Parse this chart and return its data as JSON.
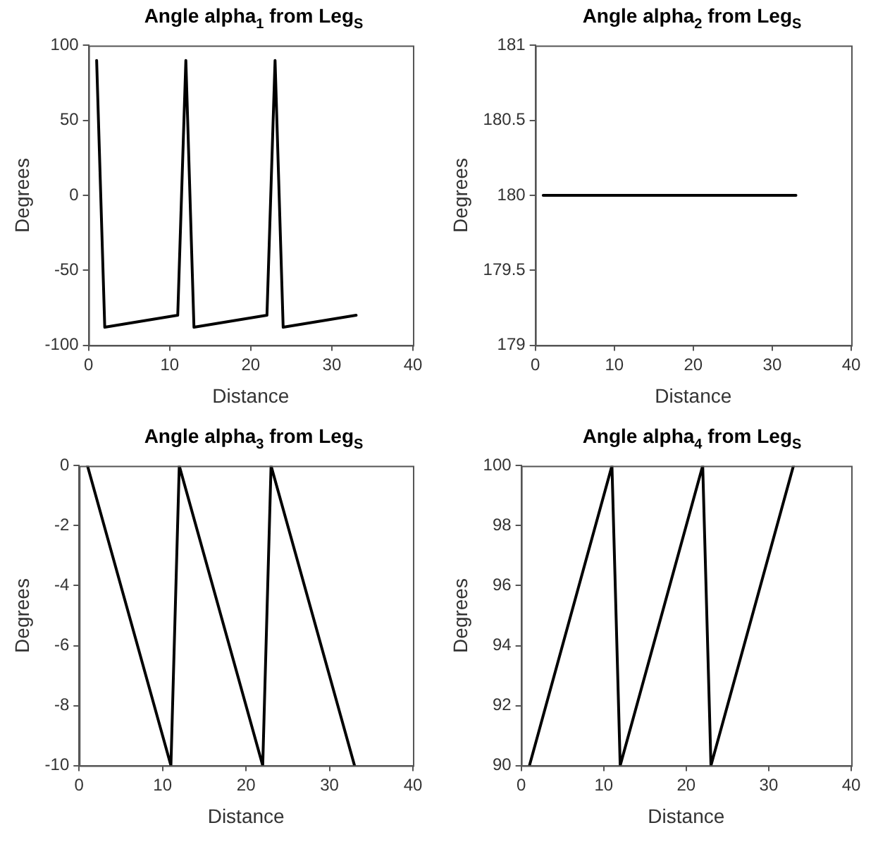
{
  "chart_data": [
    {
      "type": "line",
      "title": "Angle alpha$_{1}$ from Leg$_{S}$",
      "xlabel": "Distance",
      "ylabel": "Degrees",
      "x": [
        1,
        2,
        11,
        12,
        13,
        22,
        23,
        24,
        33
      ],
      "values": [
        90,
        -88,
        -80,
        90,
        -88,
        -80,
        90,
        -88,
        -80
      ],
      "color": "#000000",
      "xlim": [
        0,
        40
      ],
      "xticks": [
        0,
        10,
        20,
        30,
        40
      ],
      "ylim": [
        -100,
        100
      ],
      "yticks": [
        -100,
        -50,
        0,
        50,
        100
      ],
      "grid": false,
      "legend": false,
      "marker": "none",
      "line_style": "solid"
    },
    {
      "type": "line",
      "title": "Angle alpha$_{2}$ from Leg$_{S}$",
      "xlabel": "Distance",
      "ylabel": "Degrees",
      "x": [
        1,
        33
      ],
      "values": [
        180,
        180
      ],
      "color": "#000000",
      "xlim": [
        0,
        40
      ],
      "xticks": [
        0,
        10,
        20,
        30,
        40
      ],
      "ylim": [
        179,
        181
      ],
      "yticks": [
        179,
        179.5,
        180,
        180.5,
        181
      ],
      "grid": false,
      "legend": false,
      "marker": "none",
      "line_style": "solid"
    },
    {
      "type": "line",
      "title": "Angle alpha$_{3}$ from Leg$_{S}$",
      "xlabel": "Distance",
      "ylabel": "Degrees",
      "x": [
        1,
        11,
        12,
        22,
        23,
        33
      ],
      "values": [
        0,
        -10,
        0,
        -10,
        0,
        -10
      ],
      "color": "#000000",
      "xlim": [
        0,
        40
      ],
      "xticks": [
        0,
        10,
        20,
        30,
        40
      ],
      "ylim": [
        -10,
        0
      ],
      "yticks": [
        -10,
        -8,
        -6,
        -4,
        -2,
        0
      ],
      "grid": false,
      "legend": false,
      "marker": "none",
      "line_style": "solid"
    },
    {
      "type": "line",
      "title": "Angle alpha$_{4}$ from Leg$_{S}$",
      "xlabel": "Distance",
      "ylabel": "Degrees",
      "x": [
        1,
        11,
        12,
        22,
        23,
        33
      ],
      "values": [
        90,
        100,
        90,
        100,
        90,
        100
      ],
      "color": "#000000",
      "xlim": [
        0,
        40
      ],
      "xticks": [
        0,
        10,
        20,
        30,
        40
      ],
      "ylim": [
        90,
        100
      ],
      "yticks": [
        90,
        92,
        94,
        96,
        98,
        100
      ],
      "grid": false,
      "legend": false,
      "marker": "none",
      "line_style": "solid"
    }
  ]
}
